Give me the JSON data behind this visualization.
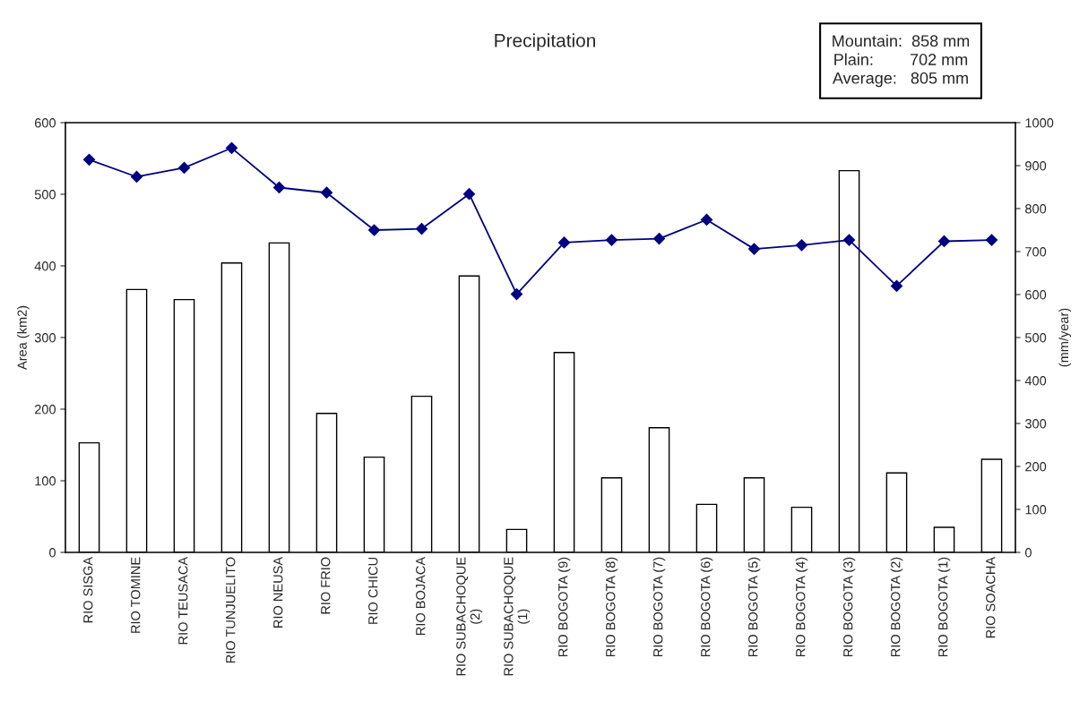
{
  "chart_data": {
    "type": "bar",
    "title": "Precipitation",
    "ylabel": "Area (km2)",
    "y2label": "(mm/year)",
    "categories": [
      "RIO SISGA",
      "RIO TOMINE",
      "RIO TEUSACA",
      "RIO TUNJUELITO",
      "RIO NEUSA",
      "RIO FRIO",
      "RIO CHICU",
      "RIO BOJACA",
      "RIO SUBACHOQUE\n(2)",
      "RIO SUBACHOQUE\n(1)",
      "RIO BOGOTA (9)",
      "RIO BOGOTA (8)",
      "RIO BOGOTA (7)",
      "RIO BOGOTA (6)",
      "RIO BOGOTA (5)",
      "RIO BOGOTA (4)",
      "RIO BOGOTA (3)",
      "RIO BOGOTA (2)",
      "RIO BOGOTA (1)",
      "RIO SOACHA"
    ],
    "series": [
      {
        "color": "#ffffff",
        "values": [
          153,
          367,
          353,
          404,
          432,
          194,
          133,
          218,
          386,
          32,
          279,
          104,
          174,
          67,
          104,
          63,
          533,
          111,
          35,
          130
        ]
      },
      {
        "type": "line",
        "axis": "y2",
        "color": "#000080",
        "marker": "diamond",
        "values": [
          914,
          874,
          895,
          941,
          849,
          837,
          750,
          753,
          834,
          601,
          721,
          727,
          730,
          774,
          706,
          715,
          727,
          620,
          724,
          727
        ]
      }
    ],
    "ylim": [
      0,
      600
    ],
    "yticks": [
      0,
      100,
      200,
      300,
      400,
      500,
      600
    ],
    "y2lim": [
      0,
      1000
    ],
    "y2ticks": [
      0,
      100,
      200,
      300,
      400,
      500,
      600,
      700,
      800,
      900,
      1000
    ],
    "annotations": [
      "Mountain:  858 mm\nPlain:        702 mm\nAverage:   805 mm"
    ],
    "grid": false,
    "legend": false
  }
}
